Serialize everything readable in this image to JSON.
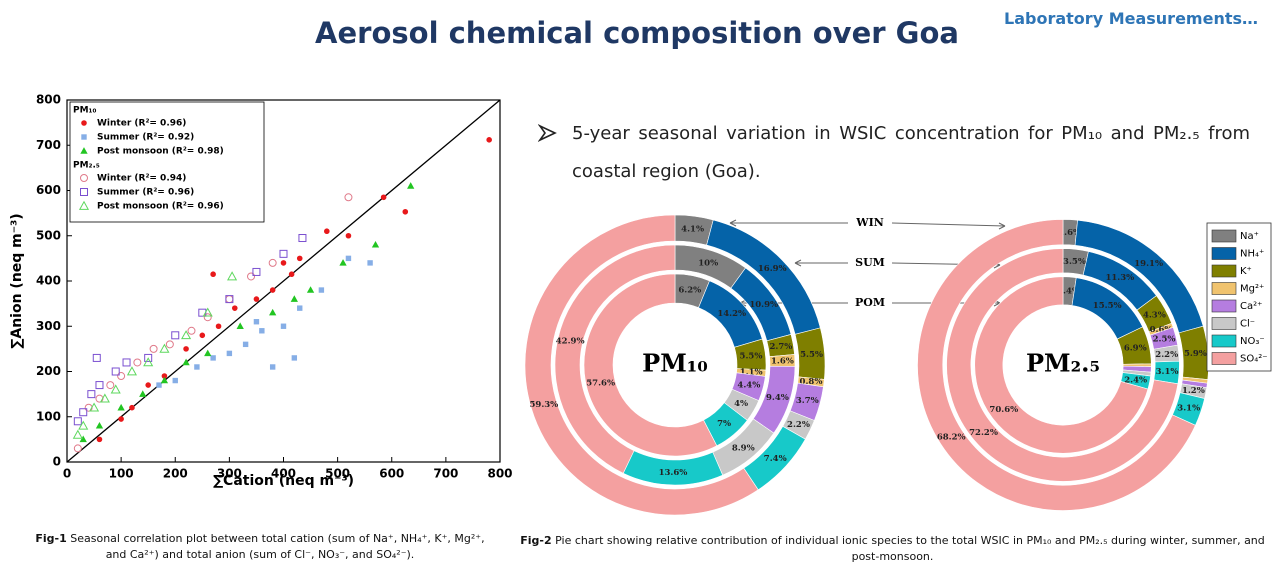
{
  "header": {
    "title": "Aerosol chemical composition over Goa",
    "section": "Laboratory Measurements…"
  },
  "bullet": "5-year seasonal variation in WSIC concentration for PM₁₀ and PM₂.₅ from coastal region (Goa).",
  "captions": [
    {
      "label": "Fig-1",
      "text": "Seasonal correlation plot between total cation (sum of Na⁺, NH₄⁺, K⁺, Mg²⁺, and Ca²⁺) and total anion (sum of Cl⁻, NO₃⁻, and SO₄²⁻)."
    },
    {
      "label": "Fig-2",
      "text": "Pie chart showing relative contribution of individual ionic species to the total WSIC in PM₁₀ and PM₂.₅ during winter, summer, and post-monsoon."
    }
  ],
  "chart_data": [
    {
      "type": "scatter",
      "x_label": "∑Cation (neq m⁻³)",
      "y_label": "∑Anion (neq m⁻³)",
      "xlim": [
        0,
        800
      ],
      "ylim": [
        0,
        800
      ],
      "xticks": [
        0,
        100,
        200,
        300,
        400,
        500,
        600,
        700,
        800
      ],
      "yticks": [
        0,
        100,
        200,
        300,
        400,
        500,
        600,
        700,
        800
      ],
      "legend_groups": [
        "PM₁₀",
        "PM₂.₅"
      ],
      "series": [
        {
          "name": "Winter (R²= 0.96)",
          "color": "#e8191b",
          "marker": "circle",
          "filled": true,
          "x": [
            780,
            585,
            625,
            520,
            480,
            430,
            400,
            380,
            350,
            310,
            280,
            250,
            220,
            180,
            150,
            120,
            100,
            60,
            415,
            270
          ],
          "values": [
            712,
            585,
            553,
            500,
            510,
            450,
            440,
            380,
            360,
            340,
            300,
            280,
            250,
            190,
            170,
            120,
            95,
            50,
            415,
            415
          ]
        },
        {
          "name": "Summer (R²= 0.92)",
          "color": "#86aee6",
          "marker": "square",
          "filled": true,
          "x": [
            560,
            520,
            470,
            430,
            400,
            360,
            330,
            300,
            270,
            240,
            200,
            170,
            350,
            420,
            380
          ],
          "values": [
            440,
            450,
            380,
            340,
            300,
            290,
            260,
            240,
            230,
            210,
            180,
            170,
            310,
            230,
            210
          ]
        },
        {
          "name": "Post monsoon (R²= 0.98)",
          "color": "#22c522",
          "marker": "triangle",
          "filled": true,
          "x": [
            635,
            570,
            510,
            450,
            420,
            380,
            320,
            260,
            220,
            180,
            140,
            100,
            60,
            30
          ],
          "values": [
            610,
            480,
            440,
            380,
            360,
            330,
            300,
            240,
            220,
            180,
            150,
            120,
            80,
            50
          ]
        },
        {
          "name": "Winter (R²= 0.94)",
          "color": "#e07a8a",
          "marker": "circle",
          "filled": false,
          "x": [
            520,
            380,
            340,
            300,
            260,
            230,
            190,
            160,
            130,
            100,
            80,
            60,
            40,
            20
          ],
          "values": [
            585,
            440,
            410,
            360,
            320,
            290,
            260,
            250,
            220,
            190,
            170,
            140,
            120,
            30
          ]
        },
        {
          "name": "Summer (R²= 0.96)",
          "color": "#7a4fd0",
          "marker": "square",
          "filled": false,
          "x": [
            435,
            400,
            350,
            300,
            250,
            200,
            150,
            110,
            90,
            60,
            45,
            30,
            20,
            55
          ],
          "values": [
            495,
            460,
            420,
            360,
            330,
            280,
            230,
            220,
            200,
            170,
            150,
            110,
            90,
            230
          ]
        },
        {
          "name": "Post monsoon (R²= 0.96)",
          "color": "#5ed85e",
          "marker": "triangle",
          "filled": false,
          "x": [
            305,
            260,
            220,
            180,
            150,
            120,
            90,
            70,
            50,
            30,
            20
          ],
          "values": [
            410,
            330,
            280,
            250,
            220,
            200,
            160,
            140,
            120,
            80,
            60
          ]
        }
      ]
    },
    {
      "type": "pie",
      "categories": [
        "Na⁺",
        "NH₄⁺",
        "K⁺",
        "Mg²⁺",
        "Ca²⁺",
        "Cl⁻",
        "NO₃⁻",
        "SO₄²⁻"
      ],
      "colors": [
        "#808080",
        "#0563a8",
        "#7f7f00",
        "#f0c36e",
        "#b57de0",
        "#c8c8c8",
        "#17c9c9",
        "#f4a0a0"
      ],
      "ring_names": [
        "WIN",
        "SUM",
        "POM"
      ],
      "panels": [
        {
          "title": "PM₁₀",
          "rings": [
            {
              "values": [
                4.1,
                16.9,
                5.5,
                0.8,
                3.7,
                2.2,
                7.4,
                59.3
              ],
              "value_labels": [
                "4.1%",
                "16.9%",
                "5.5%",
                "0.8%",
                "3.7%",
                "2.2%",
                "7.4%",
                "59.3%"
              ]
            },
            {
              "values": [
                10,
                10.9,
                2.7,
                1.6,
                9.4,
                8.9,
                13.6,
                42.9
              ],
              "value_labels": [
                "10%",
                "10.9%",
                "2.7%",
                "1.6%",
                "9.4%",
                "8.9%",
                "13.6%",
                "42.9%"
              ]
            },
            {
              "values": [
                6.2,
                14.2,
                5.5,
                1.1,
                4.4,
                4,
                7,
                57.6
              ],
              "value_labels": [
                "6.2%",
                "14.2%",
                "5.5%",
                "1.1%",
                "4.4%",
                "4%",
                "7%",
                "57.6%"
              ]
            }
          ]
        },
        {
          "title": "PM₂.₅",
          "rings": [
            {
              "values": [
                1.6,
                19.1,
                5.9,
                0.4,
                0.5,
                1.2,
                3.1,
                68.2
              ],
              "value_labels": [
                "1.6%",
                "19.1%",
                "5.9%",
                null,
                null,
                "1.2%",
                "3.1%",
                "68.2%"
              ]
            },
            {
              "values": [
                3.5,
                11.3,
                4.3,
                0.6,
                2.5,
                2.2,
                3.1,
                72.2
              ],
              "value_labels": [
                "3.5%",
                "11.3%",
                "4.3%",
                "0.6%",
                "2.5%",
                "2.2%",
                "3.1%",
                "72.2%"
              ]
            },
            {
              "values": [
                2.4,
                15.5,
                6.9,
                0.5,
                1.0,
                0.7,
                2.4,
                70.6
              ],
              "value_labels": [
                "2.4%",
                "15.5%",
                "6.9%",
                null,
                null,
                null,
                "2.4%",
                "70.6%"
              ]
            }
          ]
        }
      ]
    }
  ]
}
